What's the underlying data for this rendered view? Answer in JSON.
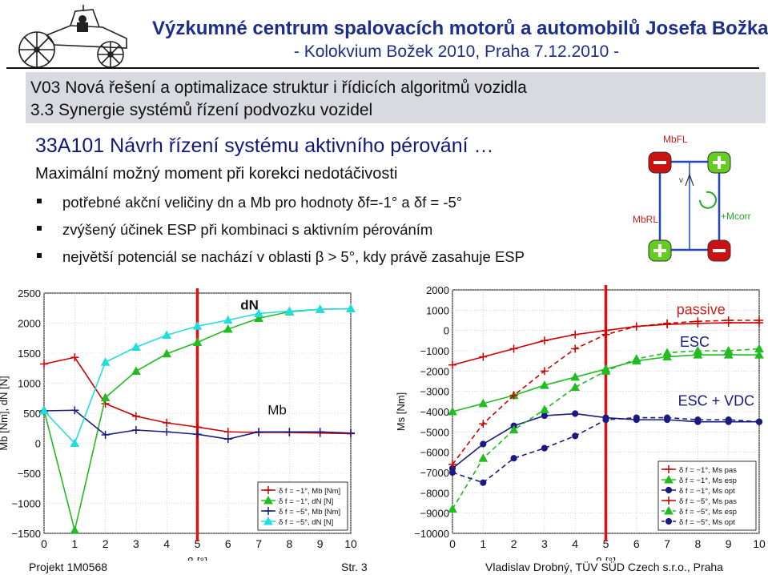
{
  "header": {
    "title": "Výzkumné centrum spalovacích motorů a automobilů Josefa Božka",
    "subtitle": "- Kolokvium Božek 2010, Praha 7.12.2010 -"
  },
  "section": {
    "line1": "V03 Nová řešení a optimalizace struktur i řídicích algoritmů vozidla",
    "line2": "3.3 Synergie systémů řízení podvozku vozidel"
  },
  "slide": {
    "title": "33A101 Návrh řízení systému aktivního pérování …",
    "subtitle": "Maximální možný moment při korekci nedotáčivosti",
    "bullets": [
      "potřebné akční veličiny dn a Mb pro hodnoty δf=-1° a δf = -5°",
      "zvýšený účinek ESP při kombinaci s aktivním pérováním",
      "největší potenciál se nachází v oblasti β > 5°, kdy právě zasahuje ESP"
    ]
  },
  "diagram": {
    "labels": {
      "mbfl": "MbFL",
      "mbrl": "MbRL",
      "mcorr": "+Mcorr",
      "v": "v"
    }
  },
  "footer": {
    "project": "Projekt 1M0568",
    "page": "Str. 3",
    "author": "Vladislav Drobný, TÜV SÜD Czech s.r.o., Praha"
  },
  "chart_data": [
    {
      "type": "line",
      "xlabel": "β [°]",
      "ylabel": "Mb [Nm], dN [N]",
      "xlim": [
        0,
        10
      ],
      "ylim": [
        -1500,
        2500
      ],
      "xticks": [
        0,
        1,
        2,
        3,
        4,
        5,
        6,
        7,
        8,
        9,
        10
      ],
      "yticks": [
        2500,
        2000,
        1500,
        1000,
        500,
        0,
        -500,
        -1000,
        -1500
      ],
      "grid": true,
      "legend_position": "bottom-right",
      "annotations": [
        {
          "text": "dN",
          "x": 6.7,
          "y": 2230
        },
        {
          "text": "Mb",
          "x": 7.6,
          "y": 480
        }
      ],
      "vline": 5,
      "series": [
        {
          "name": "δ f = −1°, Mb [Nm]",
          "color": "#cc0000",
          "marker": "plus",
          "x": [
            0,
            1,
            2,
            3,
            4,
            5,
            6,
            7,
            8,
            9,
            10
          ],
          "y": [
            1320,
            1430,
            660,
            450,
            340,
            270,
            190,
            180,
            180,
            170,
            160
          ]
        },
        {
          "name": "δ f = −1°, dN [N]",
          "color": "#22bb22",
          "marker": "triangle",
          "x": [
            0,
            1,
            2,
            3,
            4,
            5,
            6,
            7,
            8,
            9,
            10
          ],
          "y": [
            550,
            -1450,
            760,
            1200,
            1490,
            1680,
            1900,
            2080,
            2190,
            2230,
            2240
          ]
        },
        {
          "name": "δ f = −5°, Mb [Nm]",
          "color": "#1a1a80",
          "marker": "plus",
          "x": [
            0,
            1,
            2,
            3,
            4,
            5,
            6,
            7,
            8,
            9,
            10
          ],
          "y": [
            540,
            550,
            140,
            220,
            190,
            150,
            70,
            190,
            190,
            190,
            170
          ]
        },
        {
          "name": "δ f = −5°, dN [N]",
          "color": "#22dddd",
          "marker": "triangle",
          "x": [
            0,
            1,
            2,
            3,
            4,
            5,
            6,
            7,
            8,
            9,
            10
          ],
          "y": [
            540,
            0,
            1350,
            1600,
            1800,
            1950,
            2050,
            2160,
            2200,
            2230,
            2240
          ]
        }
      ]
    },
    {
      "type": "line",
      "xlabel": "β [°]",
      "ylabel": "Ms [Nm]",
      "xlim": [
        0,
        10
      ],
      "ylim": [
        -10000,
        2000
      ],
      "xticks": [
        0,
        1,
        2,
        3,
        4,
        5,
        6,
        7,
        8,
        9,
        10
      ],
      "yticks": [
        2000,
        1000,
        0,
        -1000,
        -2000,
        -3000,
        -4000,
        -5000,
        -6000,
        -7000,
        -8000,
        -9000,
        -10000
      ],
      "grid": true,
      "legend_position": "bottom-right",
      "annotations": [
        {
          "text": "passive",
          "x": 8.1,
          "y": 800
        },
        {
          "text": "ESC",
          "x": 7.9,
          "y": -800
        },
        {
          "text": "ESC + VDC",
          "x": 8.6,
          "y": -3700
        }
      ],
      "vline": 5,
      "series": [
        {
          "name": "δ f = −1°, Ms pas",
          "color": "#cc0000",
          "marker": "plus",
          "dash": false,
          "x": [
            0,
            1,
            2,
            3,
            4,
            5,
            6,
            7,
            8,
            9,
            10
          ],
          "y": [
            -1700,
            -1300,
            -900,
            -500,
            -200,
            0,
            200,
            300,
            350,
            380,
            380
          ]
        },
        {
          "name": "δ f = −1°, Ms esp",
          "color": "#22bb22",
          "marker": "triangle",
          "dash": false,
          "x": [
            0,
            1,
            2,
            3,
            4,
            5,
            6,
            7,
            8,
            9,
            10
          ],
          "y": [
            -4000,
            -3600,
            -3200,
            -2700,
            -2300,
            -1900,
            -1500,
            -1300,
            -1200,
            -1200,
            -1200
          ]
        },
        {
          "name": "δ f = −1°, Ms opt",
          "color": "#1a1a80",
          "marker": "circle",
          "dash": false,
          "x": [
            0,
            1,
            2,
            3,
            4,
            5,
            6,
            7,
            8,
            9,
            10
          ],
          "y": [
            -6800,
            -5600,
            -4700,
            -4200,
            -4100,
            -4300,
            -4400,
            -4400,
            -4500,
            -4500,
            -4500
          ]
        },
        {
          "name": "δ f = −5°, Ms pas",
          "color": "#cc0000",
          "marker": "plus",
          "dash": true,
          "x": [
            0,
            1,
            2,
            3,
            4,
            5,
            6,
            7,
            8,
            9,
            10
          ],
          "y": [
            -6600,
            -4600,
            -3200,
            -2000,
            -900,
            -200,
            200,
            350,
            450,
            500,
            500
          ]
        },
        {
          "name": "δ f = −5°, Ms esp",
          "color": "#22bb22",
          "marker": "triangle",
          "dash": true,
          "x": [
            0,
            1,
            2,
            3,
            4,
            5,
            6,
            7,
            8,
            9,
            10
          ],
          "y": [
            -8800,
            -6300,
            -4900,
            -3900,
            -2800,
            -2000,
            -1400,
            -1100,
            -1000,
            -1000,
            -900
          ]
        },
        {
          "name": "δ f = −5°, Ms opt",
          "color": "#1a1a80",
          "marker": "circle",
          "dash": true,
          "x": [
            0,
            1,
            2,
            3,
            4,
            5,
            6,
            7,
            8,
            9,
            10
          ],
          "y": [
            -7000,
            -7500,
            -6300,
            -5800,
            -5200,
            -4400,
            -4300,
            -4300,
            -4400,
            -4400,
            -4500
          ]
        }
      ]
    }
  ]
}
